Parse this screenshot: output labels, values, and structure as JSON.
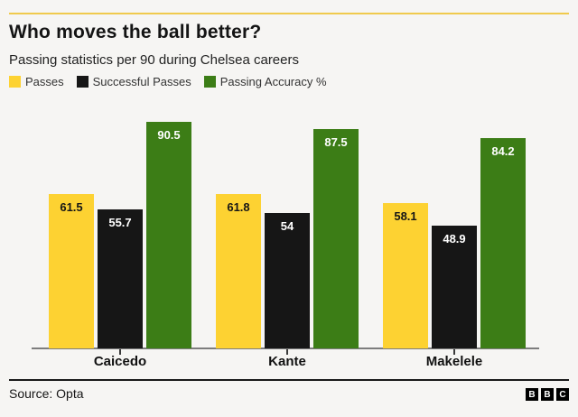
{
  "header": {
    "title": "Who moves the ball better?",
    "subtitle": "Passing statistics per 90 during Chelsea careers"
  },
  "chart_data": {
    "type": "bar",
    "title": "Who moves the ball better?",
    "subtitle": "Passing statistics per 90 during Chelsea careers",
    "categories": [
      "Caicedo",
      "Kante",
      "Makelele"
    ],
    "series": [
      {
        "name": "Passes",
        "color": "#fdd232",
        "label_color": "#161616",
        "values": [
          61.5,
          61.8,
          58.1
        ]
      },
      {
        "name": "Successful Passes",
        "color": "#161616",
        "label_color": "#ffffff",
        "values": [
          55.7,
          54,
          48.9
        ]
      },
      {
        "name": "Passing Accuracy %",
        "color": "#3c7d16",
        "label_color": "#ffffff",
        "values": [
          90.5,
          87.5,
          84.2
        ]
      }
    ],
    "xlabel": "",
    "ylabel": "",
    "ylim": [
      0,
      95
    ],
    "grid": false,
    "legend_position": "top",
    "value_labels": true
  },
  "footer": {
    "source": "Source: Opta",
    "logo_letters": [
      "B",
      "B",
      "C"
    ]
  },
  "colors": {
    "background": "#f6f5f3",
    "top_rule": "#f0ca4d",
    "axis": "#7d7d7d",
    "tick": "#3a3a3a",
    "divider": "#1a1a1a",
    "title_text": "#141414"
  }
}
